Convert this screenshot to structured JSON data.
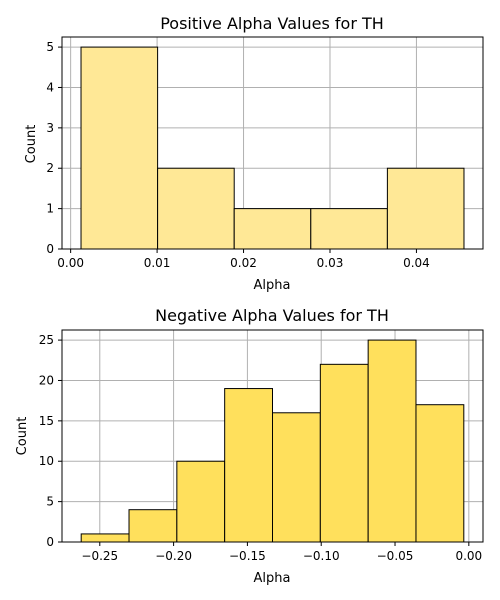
{
  "chart_data": [
    {
      "type": "bar",
      "title": "Positive Alpha Values for TH",
      "xlabel": "Alpha",
      "ylabel": "Count",
      "bin_edges": [
        0.0012,
        0.01006,
        0.01892,
        0.02778,
        0.03664,
        0.0455
      ],
      "values": [
        5,
        2,
        1,
        1,
        2
      ],
      "xlim": [
        -0.001,
        0.0477
      ],
      "ylim": [
        0,
        5.25
      ],
      "xticks": [
        0.0,
        0.01,
        0.02,
        0.03,
        0.04
      ],
      "xtick_labels": [
        "0.00",
        "0.01",
        "0.02",
        "0.03",
        "0.04"
      ],
      "yticks": [
        0,
        1,
        2,
        3,
        4,
        5
      ],
      "ytick_labels": [
        "0",
        "1",
        "2",
        "3",
        "4",
        "5"
      ],
      "grid": true,
      "bar_color": "#ffe896",
      "edge_color": "#000000"
    },
    {
      "type": "bar",
      "title": "Negative Alpha Values for TH",
      "xlabel": "Alpha",
      "ylabel": "Count",
      "bin_edges": [
        -0.2626,
        -0.2302,
        -0.1978,
        -0.1654,
        -0.133,
        -0.1006,
        -0.0682,
        -0.0358,
        -0.0034
      ],
      "values": [
        1,
        4,
        10,
        19,
        16,
        22,
        25,
        17
      ],
      "xlim": [
        -0.2756,
        0.0096
      ],
      "ylim": [
        0,
        26.25
      ],
      "xticks": [
        -0.25,
        -0.2,
        -0.15,
        -0.1,
        -0.05,
        0.0
      ],
      "xtick_labels": [
        "−0.25",
        "−0.20",
        "−0.15",
        "−0.10",
        "−0.05",
        "0.00"
      ],
      "yticks": [
        0,
        5,
        10,
        15,
        20,
        25
      ],
      "ytick_labels": [
        "0",
        "5",
        "10",
        "15",
        "20",
        "25"
      ],
      "grid": true,
      "bar_color": "#ffe05c",
      "edge_color": "#000000"
    }
  ]
}
